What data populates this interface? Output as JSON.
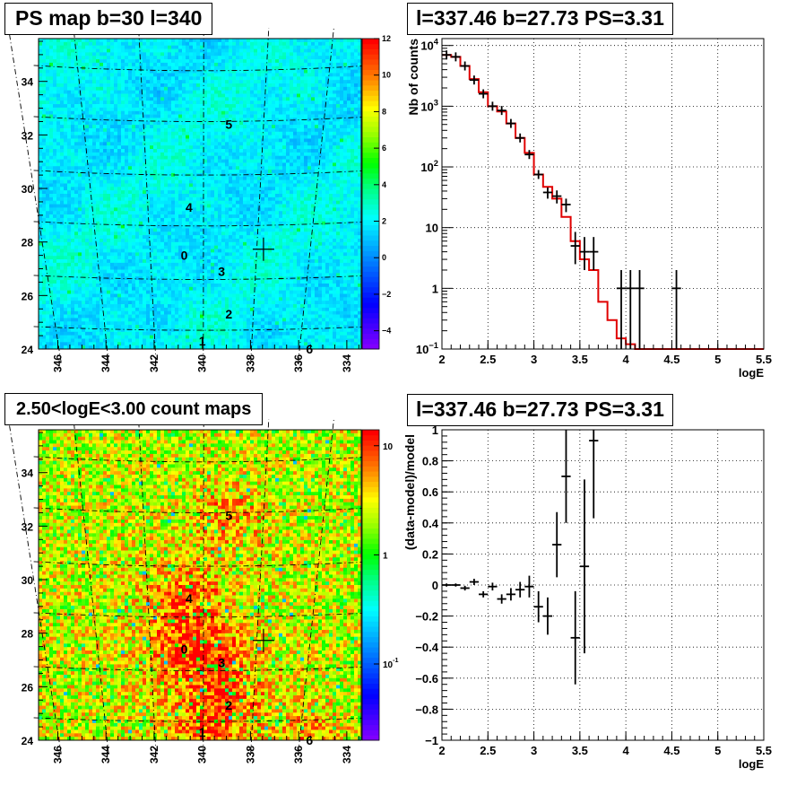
{
  "panels": {
    "ps_map": {
      "title": "PS map b=30 l=340",
      "chart_data": {
        "type": "heatmap",
        "title": "PS map b=30 l=340",
        "xlim": [
          346.8,
          333.4
        ],
        "ylim": [
          24,
          35.6
        ],
        "x_ticks": [
          346,
          344,
          342,
          340,
          338,
          336,
          334
        ],
        "y_ticks": [
          24,
          26,
          28,
          30,
          32,
          34
        ],
        "colorbar_ticks": [
          12,
          10,
          8,
          6,
          4,
          2,
          0,
          -2,
          -4
        ],
        "colorbar_range": [
          -5,
          12
        ],
        "colorbar_scale": "linear",
        "grid": "curved dashed coordinate grid",
        "marker": {
          "l": 337.46,
          "b": 27.73,
          "symbol": "+"
        },
        "source_labels": [
          {
            "label": "0",
            "l": 340.75,
            "b": 27.5
          },
          {
            "label": "1",
            "l": 340.0,
            "b": 24.3
          },
          {
            "label": "2",
            "l": 338.9,
            "b": 25.3
          },
          {
            "label": "3",
            "l": 339.2,
            "b": 26.9
          },
          {
            "label": "4",
            "l": 340.55,
            "b": 29.3
          },
          {
            "label": "5",
            "l": 338.9,
            "b": 32.4
          },
          {
            "label": "6",
            "l": 335.55,
            "b": 24.0
          }
        ]
      }
    },
    "spectrum": {
      "title": "l=337.46 b=27.73 PS=3.31",
      "chart_data": {
        "type": "line",
        "title": "l=337.46 b=27.73 PS=3.31",
        "xlabel": "logE",
        "ylabel": "Nb of counts",
        "xlim": [
          2,
          5.5
        ],
        "ylim": [
          0.1,
          13000
        ],
        "y_scale": "log",
        "grid": true,
        "x_ticks": [
          "2",
          "2.5",
          "3",
          "3.5",
          "4",
          "4.5",
          "5",
          "5.5"
        ],
        "y_ticks": [
          {
            "value": 0.1,
            "base": "10",
            "exp": "−1"
          },
          {
            "value": 1,
            "base": "1",
            "exp": ""
          },
          {
            "value": 10,
            "base": "10",
            "exp": ""
          },
          {
            "value": 100,
            "base": "10",
            "exp": "2"
          },
          {
            "value": 1000,
            "base": "10",
            "exp": "3"
          },
          {
            "value": 10000,
            "base": "10",
            "exp": "4"
          }
        ],
        "series": [
          {
            "kind": "points",
            "color": "#000000",
            "x": [
              2.05,
              2.15,
              2.25,
              2.35,
              2.45,
              2.55,
              2.65,
              2.75,
              2.85,
              2.95,
              3.05,
              3.15,
              3.25,
              3.35,
              3.45,
              3.55,
              3.65,
              3.95,
              4.05,
              4.15,
              4.55
            ],
            "y": [
              7000,
              6500,
              4600,
              2700,
              1600,
              1000,
              850,
              520,
              300,
              160,
              75,
              38,
              33,
              24,
              5,
              4,
              4,
              1,
              1,
              1,
              1
            ],
            "yerr_lo": [
              100,
              100,
              80,
              60,
              50,
              35,
              35,
              25,
              25,
              20,
              10,
              8,
              8,
              6,
              2.5,
              2,
              2,
              0.9,
              0.9,
              0.9,
              0.9
            ],
            "yerr_hi": [
              100,
              100,
              80,
              60,
              50,
              35,
              35,
              25,
              25,
              20,
              10,
              8,
              8,
              6,
              3.5,
              3,
              3,
              1,
              1,
              1,
              1
            ]
          },
          {
            "kind": "step",
            "color": "#e00000",
            "x_edges": [
              2.0,
              2.1,
              2.2,
              2.3,
              2.4,
              2.5,
              2.6,
              2.7,
              2.8,
              2.9,
              3.0,
              3.1,
              3.2,
              3.3,
              3.4,
              3.5,
              3.6,
              3.7,
              3.8,
              3.9,
              4.0,
              4.1,
              5.5
            ],
            "y": [
              7000,
              6500,
              4600,
              2800,
              1700,
              1000,
              820,
              520,
              300,
              170,
              75,
              47,
              30,
              15,
              6,
              3,
              2,
              0.6,
              0.3,
              0.15,
              0.12,
              0.1
            ]
          }
        ]
      }
    },
    "count_map": {
      "title": "2.50<logE<3.00 count maps",
      "chart_data": {
        "type": "heatmap",
        "title": "2.50<logE<3.00 count maps",
        "xlim": [
          346.8,
          333.4
        ],
        "ylim": [
          24,
          35.6
        ],
        "x_ticks": [
          346,
          344,
          342,
          340,
          338,
          336,
          334
        ],
        "y_ticks": [
          24,
          26,
          28,
          30,
          32,
          34
        ],
        "colorbar_ticks": [
          {
            "value": 10,
            "base": "10",
            "exp": ""
          },
          {
            "value": 1,
            "base": "1",
            "exp": ""
          },
          {
            "value": 0.1,
            "base": "10",
            "exp": "-1"
          }
        ],
        "colorbar_range": [
          0.02,
          14
        ],
        "colorbar_scale": "log",
        "grid": "curved dashed coordinate grid",
        "marker": {
          "l": 337.46,
          "b": 27.73,
          "symbol": "+"
        },
        "source_labels": [
          {
            "label": "0",
            "l": 340.75,
            "b": 27.4
          },
          {
            "label": "1",
            "l": 340.0,
            "b": 24.3
          },
          {
            "label": "2",
            "l": 338.9,
            "b": 25.3
          },
          {
            "label": "3",
            "l": 339.2,
            "b": 26.9
          },
          {
            "label": "4",
            "l": 340.55,
            "b": 29.3
          },
          {
            "label": "5",
            "l": 338.9,
            "b": 32.4
          },
          {
            "label": "6",
            "l": 335.55,
            "b": 24.0
          }
        ]
      }
    },
    "residuals": {
      "title": "l=337.46 b=27.73 PS=3.31",
      "chart_data": {
        "type": "scatter",
        "title": "l=337.46 b=27.73 PS=3.31",
        "xlabel": "logE",
        "ylabel": "(data-model)/model",
        "xlim": [
          2,
          5.5
        ],
        "ylim": [
          -1,
          1
        ],
        "grid": true,
        "x_ticks": [
          "2",
          "2.5",
          "3",
          "3.5",
          "4",
          "4.5",
          "5",
          "5.5"
        ],
        "y_ticks": [
          "1",
          "0.8",
          "0.6",
          "0.4",
          "0.2",
          "0",
          "−0.2",
          "−0.4",
          "−0.6",
          "−0.8",
          "−1"
        ],
        "x": [
          2.05,
          2.15,
          2.25,
          2.35,
          2.45,
          2.55,
          2.65,
          2.75,
          2.85,
          2.95,
          3.05,
          3.15,
          3.25,
          3.35,
          3.45,
          3.55,
          3.65
        ],
        "y": [
          0.0,
          0.0,
          -0.02,
          0.02,
          -0.06,
          -0.01,
          -0.09,
          -0.06,
          -0.03,
          -0.01,
          -0.14,
          -0.2,
          0.26,
          0.7,
          -0.34,
          0.12,
          0.93
        ],
        "yerr": [
          0.01,
          0.01,
          0.015,
          0.02,
          0.02,
          0.025,
          0.03,
          0.04,
          0.05,
          0.07,
          0.1,
          0.12,
          0.21,
          0.3,
          0.3,
          0.56,
          0.5
        ]
      }
    }
  }
}
